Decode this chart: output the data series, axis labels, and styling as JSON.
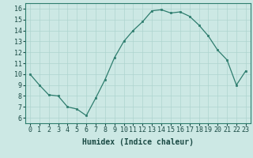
{
  "x": [
    0,
    1,
    2,
    3,
    4,
    5,
    6,
    7,
    8,
    9,
    10,
    11,
    12,
    13,
    14,
    15,
    16,
    17,
    18,
    19,
    20,
    21,
    22,
    23
  ],
  "y": [
    10.0,
    9.0,
    8.1,
    8.0,
    7.0,
    6.8,
    6.2,
    7.8,
    9.5,
    11.5,
    13.0,
    14.0,
    14.8,
    15.8,
    15.9,
    15.6,
    15.7,
    15.3,
    14.5,
    13.5,
    12.2,
    11.3,
    9.0,
    10.3
  ],
  "xlabel": "Humidex (Indice chaleur)",
  "xlim": [
    -0.5,
    23.5
  ],
  "ylim": [
    5.5,
    16.5
  ],
  "yticks": [
    6,
    7,
    8,
    9,
    10,
    11,
    12,
    13,
    14,
    15,
    16
  ],
  "xticks": [
    0,
    1,
    2,
    3,
    4,
    5,
    6,
    7,
    8,
    9,
    10,
    11,
    12,
    13,
    14,
    15,
    16,
    17,
    18,
    19,
    20,
    21,
    22,
    23
  ],
  "line_color": "#2e7d6e",
  "marker_color": "#2e7d6e",
  "bg_color": "#cce8e4",
  "grid_color": "#aed4cf",
  "xlabel_fontsize": 7,
  "tick_fontsize": 6
}
